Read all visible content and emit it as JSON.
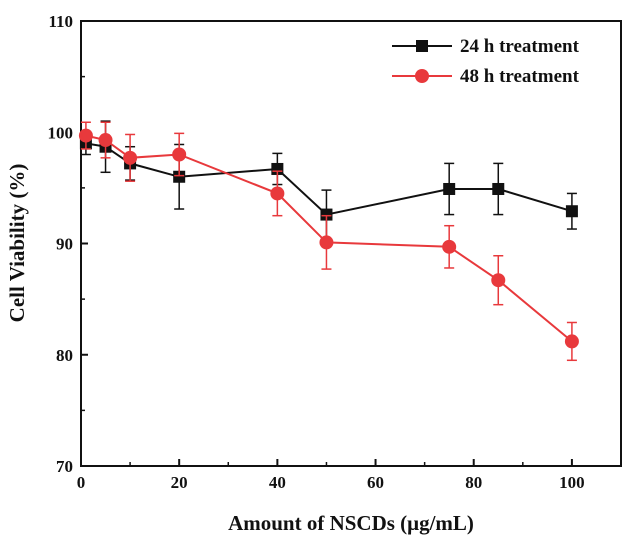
{
  "chart_data": {
    "type": "line",
    "xlabel": "Amount of NSCDs (μg/mL)",
    "ylabel": "Cell Viability (%)",
    "xlim": [
      0,
      110
    ],
    "ylim": [
      70,
      110
    ],
    "x_ticks": [
      "0",
      "20",
      "40",
      "60",
      "80",
      "100"
    ],
    "y_ticks": [
      "70",
      "80",
      "90",
      "100",
      "110"
    ],
    "grid": false,
    "legend_position": "top-right",
    "series": [
      {
        "name": "24 h treatment",
        "color": "#111111",
        "marker": "square",
        "x": [
          1,
          5,
          10,
          20,
          40,
          50,
          75,
          85,
          100
        ],
        "y": [
          99.0,
          98.7,
          97.2,
          96.0,
          96.7,
          92.6,
          94.9,
          94.9,
          92.9
        ],
        "error": [
          1.0,
          2.3,
          1.5,
          2.9,
          1.4,
          2.2,
          2.3,
          2.3,
          1.6
        ]
      },
      {
        "name": "48 h treatment",
        "color": "#e8393c",
        "marker": "circle",
        "x": [
          1,
          5,
          10,
          20,
          40,
          50,
          75,
          85,
          100
        ],
        "y": [
          99.7,
          99.3,
          97.7,
          98.0,
          94.5,
          90.1,
          89.7,
          86.7,
          81.2
        ],
        "error": [
          1.2,
          1.6,
          2.1,
          1.9,
          2.0,
          2.4,
          1.9,
          2.2,
          1.7
        ]
      }
    ]
  }
}
